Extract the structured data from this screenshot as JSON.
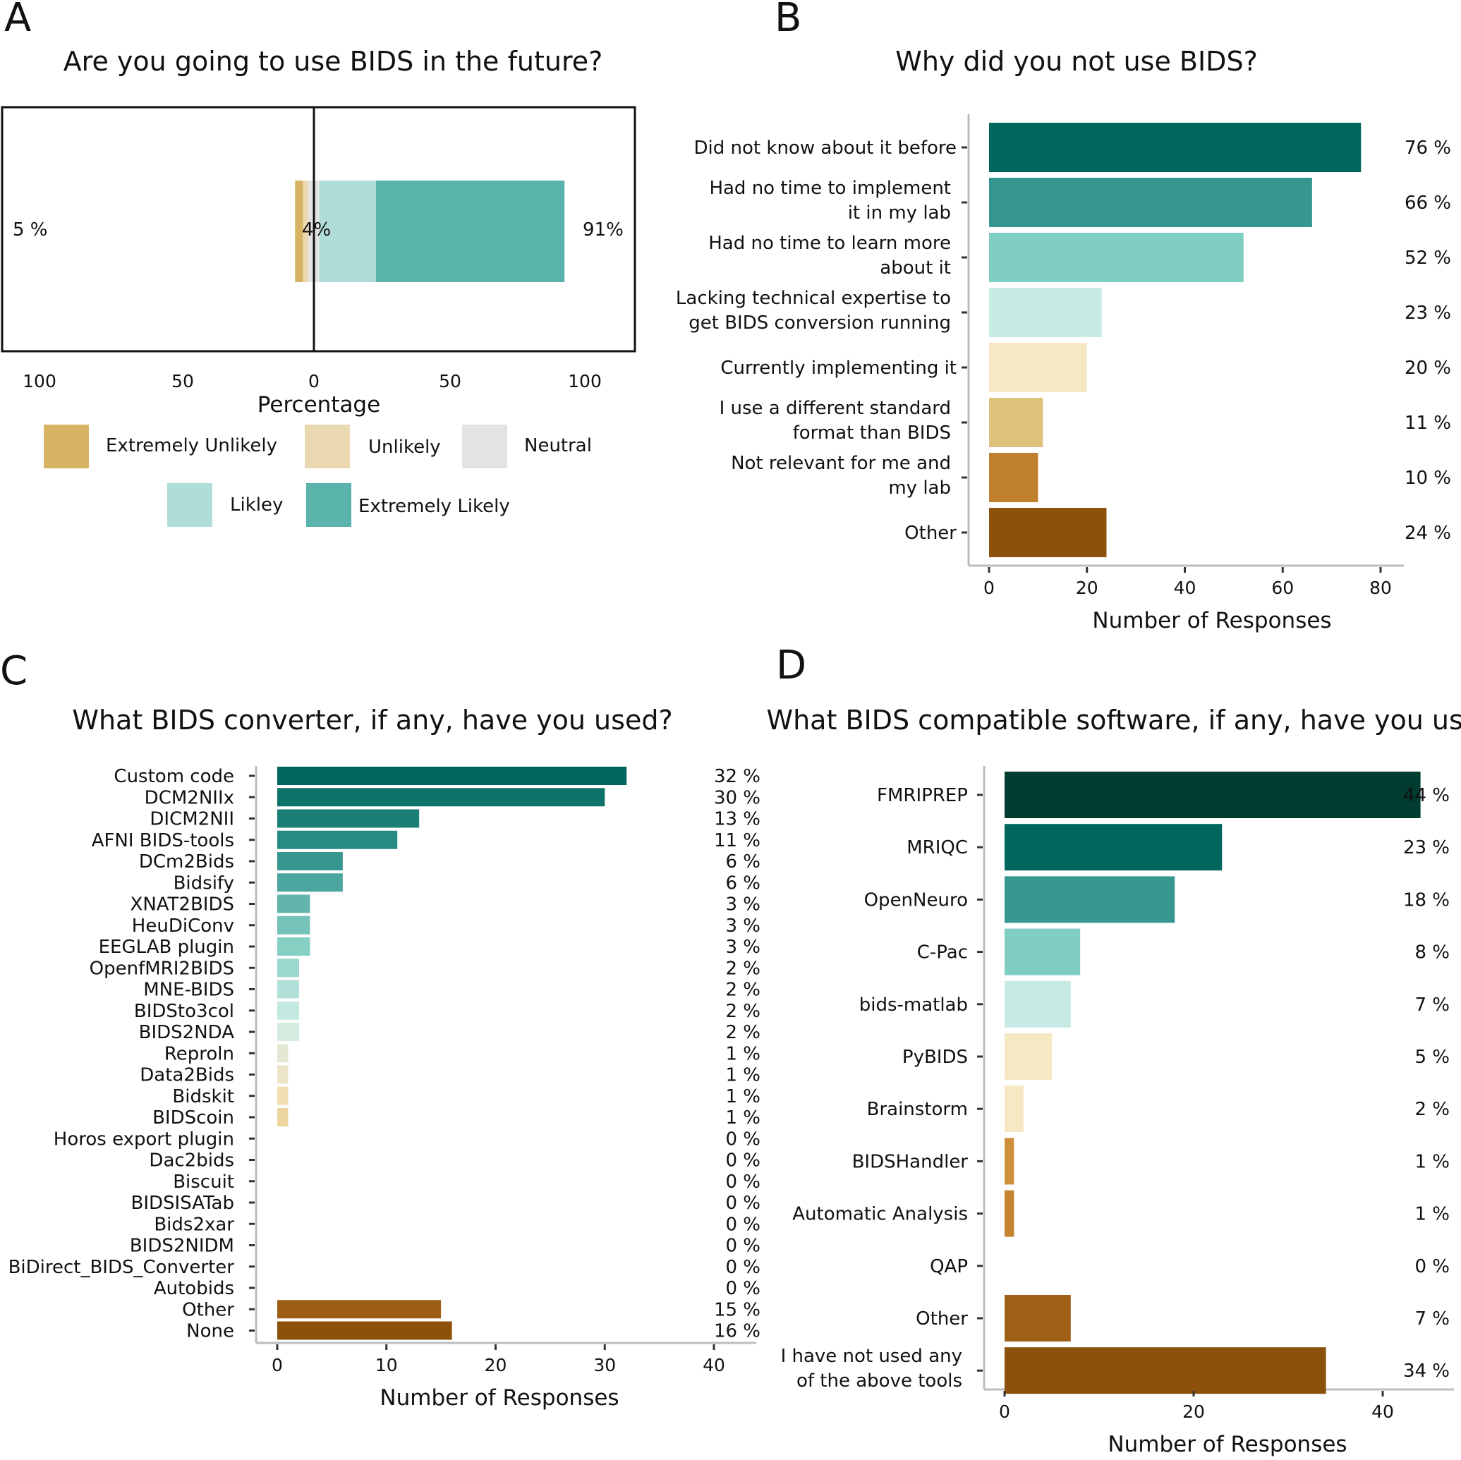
{
  "chart_data": [
    {
      "panel": "A",
      "type": "bar",
      "orientation": "horizontal-diverging",
      "title": "Are you going to use BIDS in the future?",
      "xlabel": "Percentage",
      "x_ticks": [
        "100",
        "50",
        "0",
        "50",
        "100"
      ],
      "xlim": [
        -100,
        100
      ],
      "categories": [
        "Extremely Unlikely",
        "Unlikely",
        "Neutral",
        "Likley",
        "Extremely Likely"
      ],
      "values": [
        3,
        2,
        4,
        21,
        70
      ],
      "summary_labels": {
        "negative": "5 %",
        "neutral": "4%",
        "positive": "91%"
      },
      "legend": [
        "Extremely Unlikely",
        "Unlikely",
        "Neutral",
        "Likley",
        "Extremely Likely"
      ],
      "colors": [
        "#d8b365",
        "#ead9b0",
        "#e3e3e3",
        "#b0ddd7",
        "#5ab4ac"
      ]
    },
    {
      "panel": "B",
      "type": "bar",
      "orientation": "horizontal",
      "title": "Why did you not use BIDS?",
      "xlabel": "Number of Responses",
      "x_ticks": [
        0,
        20,
        40,
        60,
        80
      ],
      "xlim": [
        0,
        80
      ],
      "categories": [
        [
          "Did not know about it before"
        ],
        [
          "Had no time to implement",
          "it in my lab"
        ],
        [
          "Had no time to learn more",
          "about it"
        ],
        [
          "Lacking technical expertise to",
          "get BIDS conversion running"
        ],
        [
          "Currently implementing it"
        ],
        [
          "I use a different standard",
          "format than BIDS"
        ],
        [
          "Not relevant for me and",
          "my lab"
        ],
        [
          "Other"
        ]
      ],
      "values": [
        76,
        66,
        52,
        23,
        20,
        11,
        10,
        24
      ],
      "labels": [
        "76 %",
        "66 %",
        "52 %",
        "23 %",
        "20 %",
        "11 %",
        "10 %",
        "24 %"
      ],
      "colors": [
        "#01665e",
        "#35978f",
        "#80cdc1",
        "#c7eae5",
        "#f6e8c3",
        "#dfc27d",
        "#bf812d",
        "#8c510a"
      ]
    },
    {
      "panel": "C",
      "type": "bar",
      "orientation": "horizontal",
      "title": "What BIDS converter, if any, have you used?",
      "xlabel": "Number of Responses",
      "x_ticks": [
        0,
        10,
        20,
        30,
        40
      ],
      "xlim": [
        0,
        40
      ],
      "categories": [
        "Custom code",
        "DCM2NIIx",
        "DICM2NII",
        "AFNI BIDS-tools",
        "DCm2Bids",
        "Bidsify",
        "XNAT2BIDS",
        "HeuDiConv",
        "EEGLAB plugin",
        "OpenfMRI2BIDS",
        "MNE-BIDS",
        "BIDSto3col",
        "BIDS2NDA",
        "Reproln",
        "Data2Bids",
        "Bidskit",
        "BIDScoin",
        "Horos export plugin",
        "Dac2bids",
        "Biscuit",
        "BIDSISATab",
        "Bids2xar",
        "BIDS2NIDM",
        "BiDirect_BIDS_Converter",
        "Autobids",
        "Other",
        "None"
      ],
      "values": [
        32,
        30,
        13,
        11,
        6,
        6,
        3,
        3,
        3,
        2,
        2,
        2,
        2,
        1,
        1,
        1,
        1,
        0,
        0,
        0,
        0,
        0,
        0,
        0,
        0,
        15,
        16
      ],
      "labels": [
        "32 %",
        "30 %",
        "13 %",
        "11 %",
        "6 %",
        "6 %",
        "3 %",
        "3 %",
        "3 %",
        "2 %",
        "2 %",
        "2 %",
        "2 %",
        "1 %",
        "1 %",
        "1 %",
        "1 %",
        "0 %",
        "0 %",
        "0 %",
        "0 %",
        "0 %",
        "0 %",
        "0 %",
        "0 %",
        "15 %",
        "16 %"
      ],
      "colors": [
        "#01665e",
        "#0d736a",
        "#1b7f76",
        "#288b82",
        "#35978f",
        "#4aa69e",
        "#62b5ab",
        "#74c2b8",
        "#85cfc3",
        "#9ad7cd",
        "#b1e0d8",
        "#c4e8e2",
        "#d5ebdf",
        "#e2e8d4",
        "#ece5c7",
        "#f0dfb3",
        "#ecd6a0",
        "#d8d8d8",
        "#d8d8d8",
        "#d8d8d8",
        "#d8d8d8",
        "#d8d8d8",
        "#d8d8d8",
        "#d8d8d8",
        "#d8d8d8",
        "#9c5e14",
        "#8c510a"
      ]
    },
    {
      "panel": "D",
      "type": "bar",
      "orientation": "horizontal",
      "title": "What BIDS compatible software, if any, have you used?",
      "xlabel": "Number of Responses",
      "x_ticks": [
        0,
        20,
        40
      ],
      "xlim": [
        0,
        50
      ],
      "categories": [
        [
          "FMRIPREP"
        ],
        [
          "MRIQC"
        ],
        [
          "OpenNeuro"
        ],
        [
          "C-Pac"
        ],
        [
          "bids-matlab"
        ],
        [
          "PyBIDS"
        ],
        [
          "Brainstorm"
        ],
        [
          "BIDSHandler"
        ],
        [
          "Automatic Analysis"
        ],
        [
          "QAP"
        ],
        [
          "Other"
        ],
        [
          "I have not used any",
          "of the above tools"
        ]
      ],
      "values": [
        44,
        23,
        18,
        8,
        7,
        5,
        2,
        1,
        1,
        0,
        7,
        34
      ],
      "labels": [
        "44 %",
        "23 %",
        "18 %",
        "8 %",
        "7 %",
        "5 %",
        "2 %",
        "1 %",
        "1 %",
        "0 %",
        "7 %",
        "34 %"
      ],
      "colors": [
        "#003c30",
        "#01665e",
        "#35978f",
        "#80cdc1",
        "#c7eae5",
        "#f6e8c3",
        "#f6e8c3",
        "#cd8f3b",
        "#c58530",
        "#c58530",
        "#9f5f17",
        "#8c510a"
      ]
    }
  ],
  "panel_letters": [
    "A",
    "B",
    "C",
    "D"
  ]
}
